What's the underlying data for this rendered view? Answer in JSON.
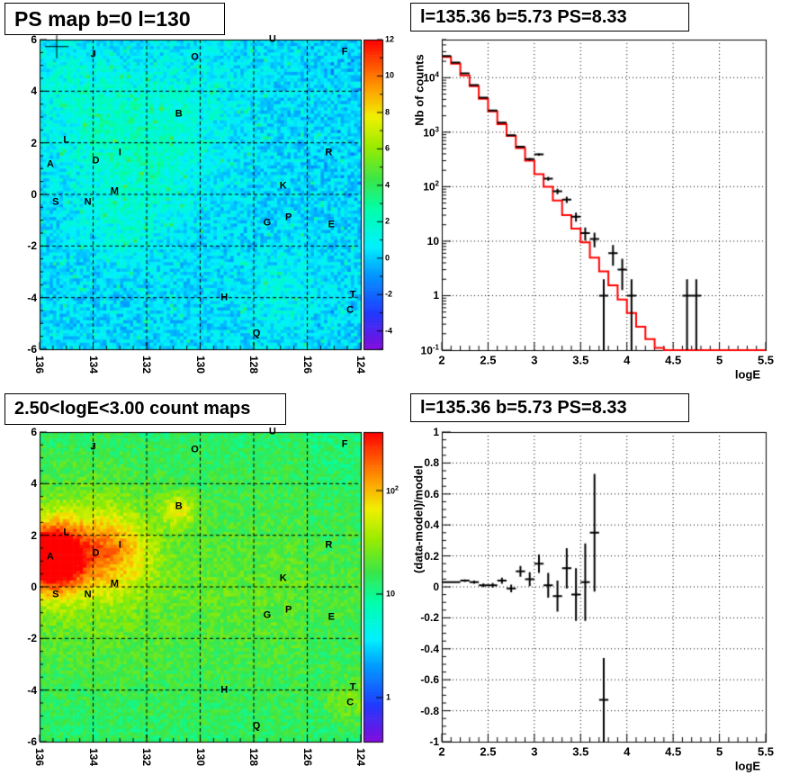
{
  "colors": {
    "model": "#ff0000",
    "data": "#000000",
    "grid": "#000000"
  },
  "chart_data": [
    {
      "type": "heatmap",
      "title": "PS map b=0 l=130",
      "xlabel": "",
      "ylabel": "",
      "xlim": [
        136,
        124
      ],
      "ylim": [
        -6,
        6
      ],
      "x_ticks": [
        136,
        134,
        132,
        130,
        128,
        126,
        124
      ],
      "y_ticks": [
        -6,
        -4,
        -2,
        0,
        2,
        4,
        6
      ],
      "grid": true,
      "colorbar": {
        "scale": "linear",
        "range": [
          -5,
          12
        ],
        "ticks": [
          -4,
          -2,
          0,
          2,
          4,
          6,
          8,
          10,
          12
        ]
      },
      "sources": [
        {
          "label": "A",
          "l": 135.6,
          "b": 1.15
        },
        {
          "label": "B",
          "l": 130.8,
          "b": 3.1
        },
        {
          "label": "C",
          "l": 124.4,
          "b": -4.5
        },
        {
          "label": "D",
          "l": 133.9,
          "b": 1.3
        },
        {
          "label": "E",
          "l": 125.1,
          "b": -1.2
        },
        {
          "label": "F",
          "l": 124.6,
          "b": 5.5
        },
        {
          "label": "G",
          "l": 127.5,
          "b": -1.1
        },
        {
          "label": "H",
          "l": 129.1,
          "b": -4.0
        },
        {
          "label": "I",
          "l": 133.0,
          "b": 1.6
        },
        {
          "label": "J",
          "l": 134.0,
          "b": 5.4
        },
        {
          "label": "K",
          "l": 126.9,
          "b": 0.3
        },
        {
          "label": "L",
          "l": 135.0,
          "b": 2.1
        },
        {
          "label": "M",
          "l": 133.2,
          "b": 0.1
        },
        {
          "label": "N",
          "l": 134.2,
          "b": -0.3
        },
        {
          "label": "O",
          "l": 130.2,
          "b": 5.3
        },
        {
          "label": "P",
          "l": 126.7,
          "b": -0.9
        },
        {
          "label": "Q",
          "l": 127.9,
          "b": -5.4
        },
        {
          "label": "R",
          "l": 125.2,
          "b": 1.6
        },
        {
          "label": "S",
          "l": 135.4,
          "b": -0.3
        },
        {
          "label": "T",
          "l": 124.3,
          "b": -3.9
        },
        {
          "label": "U",
          "l": 127.3,
          "b": 6.0
        }
      ],
      "marker": {
        "l": 135.36,
        "b": 5.73
      }
    },
    {
      "type": "line",
      "title": "l=135.36 b=5.73 PS=8.33",
      "xlabel": "logE",
      "ylabel": "Nb of counts",
      "xlim": [
        2,
        5.5
      ],
      "ylim": [
        0.1,
        50000
      ],
      "yscale": "log",
      "x_ticks": [
        "2",
        "2.5",
        "3",
        "3.5",
        "4",
        "4.5",
        "5",
        "5.5"
      ],
      "y_ticks": [
        "10^-1",
        "1",
        "10",
        "10^2",
        "10^3",
        "10^4"
      ],
      "grid": true,
      "series": [
        {
          "style": "step",
          "color": "#ff0000",
          "x": [
            2.0,
            2.1,
            2.2,
            2.3,
            2.4,
            2.5,
            2.6,
            2.7,
            2.8,
            2.9,
            3.0,
            3.1,
            3.2,
            3.3,
            3.4,
            3.5,
            3.6,
            3.7,
            3.8,
            3.9,
            4.0,
            4.1,
            4.2,
            4.3,
            4.4,
            4.5,
            4.6,
            4.7,
            4.8,
            4.9,
            5.0,
            5.1,
            5.2,
            5.3,
            5.4
          ],
          "y": [
            24000,
            18000,
            11000,
            7000,
            4100,
            2400,
            1400,
            850,
            510,
            300,
            170,
            100,
            56,
            30,
            17,
            9.5,
            5,
            2.8,
            1.55,
            0.85,
            0.48,
            0.27,
            0.16,
            0.11,
            0.1,
            0.1,
            0.1,
            0.1,
            0.1,
            0.1,
            0.1,
            0.1,
            0.1,
            0.1,
            0.1
          ]
        },
        {
          "style": "errorbar",
          "color": "#000000",
          "x": [
            2.05,
            2.15,
            2.25,
            2.35,
            2.45,
            2.55,
            2.65,
            2.75,
            2.85,
            2.95,
            3.05,
            3.15,
            3.25,
            3.35,
            3.45,
            3.55,
            3.65,
            3.75,
            3.85,
            3.95,
            4.05,
            4.65,
            4.75
          ],
          "y": [
            25000,
            19000,
            12000,
            7300,
            4300,
            2500,
            1500,
            880,
            540,
            320,
            390,
            140,
            82,
            58,
            28,
            14,
            11,
            1,
            6,
            3,
            1,
            1,
            1
          ]
        }
      ]
    },
    {
      "type": "heatmap",
      "title": "2.50<logE<3.00 count maps",
      "xlabel": "",
      "ylabel": "",
      "xlim": [
        136,
        124
      ],
      "ylim": [
        -6,
        6
      ],
      "x_ticks": [
        136,
        134,
        132,
        130,
        128,
        126,
        124
      ],
      "y_ticks": [
        -6,
        -4,
        -2,
        0,
        2,
        4,
        6
      ],
      "grid": true,
      "colorbar": {
        "scale": "log",
        "ticks": [
          "1",
          "10",
          "10^2"
        ]
      },
      "sources_ref": "same as PS map"
    },
    {
      "type": "scatter",
      "title": "l=135.36 b=5.73 PS=8.33",
      "xlabel": "logE",
      "ylabel": "(data-model)/model",
      "xlim": [
        2,
        5.5
      ],
      "ylim": [
        -1,
        1
      ],
      "x_ticks": [
        "2",
        "2.5",
        "3",
        "3.5",
        "4",
        "4.5",
        "5",
        "5.5"
      ],
      "y_ticks": [
        "-1",
        "-0.8",
        "-0.6",
        "-0.4",
        "-0.2",
        "0",
        "0.2",
        "0.4",
        "0.6",
        "0.8",
        "1"
      ],
      "grid": true,
      "series": [
        {
          "style": "errorbar",
          "color": "#000000",
          "x": [
            2.05,
            2.15,
            2.25,
            2.35,
            2.45,
            2.55,
            2.65,
            2.75,
            2.85,
            2.95,
            3.05,
            3.15,
            3.25,
            3.35,
            3.45,
            3.55,
            3.65,
            3.75
          ],
          "y": [
            0.03,
            0.03,
            0.04,
            0.03,
            0.01,
            0.01,
            0.04,
            -0.01,
            0.1,
            0.05,
            0.15,
            0.01,
            -0.06,
            0.12,
            -0.05,
            0.03,
            0.35,
            -0.73
          ],
          "err": [
            0.005,
            0.006,
            0.008,
            0.01,
            0.012,
            0.015,
            0.02,
            0.025,
            0.035,
            0.045,
            0.06,
            0.08,
            0.1,
            0.13,
            0.17,
            0.25,
            0.38,
            0.27
          ]
        }
      ]
    }
  ]
}
